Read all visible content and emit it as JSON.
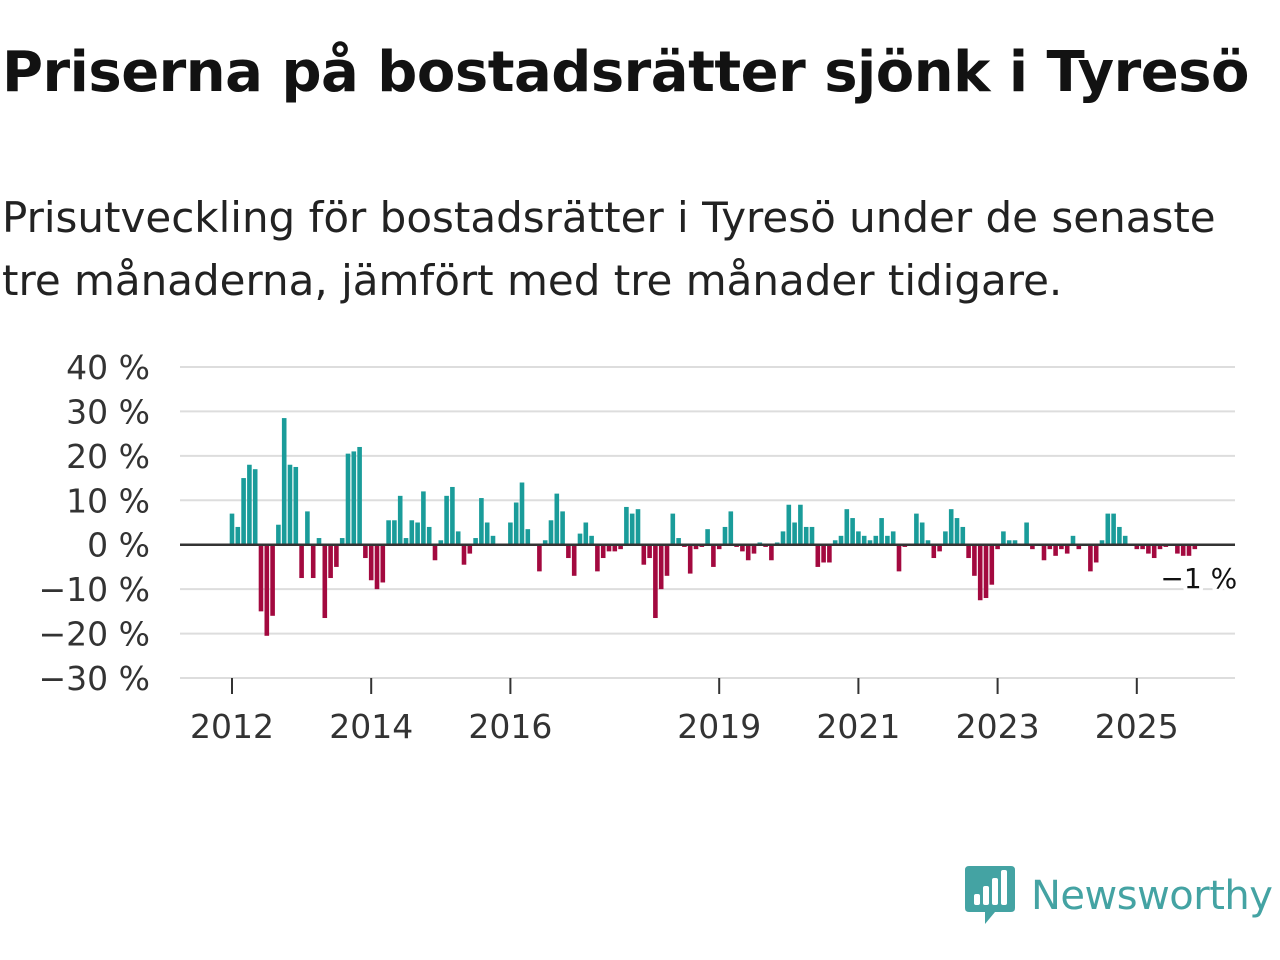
{
  "title": "Priserna på bostadsrätter sjönk i Tyresö",
  "subtitle": "Prisutveckling för bostadsrätter i Tyresö under de senaste tre månaderna, jämfört med tre månader tidigare.",
  "brand": {
    "name": "Newsworthy",
    "color": "#44a3a3"
  },
  "colors": {
    "positive": "#1a9c9a",
    "negative": "#a3093f",
    "grid": "#dddddd",
    "zero": "#333333"
  },
  "chart_data": {
    "type": "bar",
    "title": "Priserna på bostadsrätter sjönk i Tyresö",
    "ylabel": "",
    "xlabel": "",
    "ylim": [
      -30,
      40
    ],
    "yticks": [
      40,
      30,
      20,
      10,
      0,
      -10,
      -20,
      -30
    ],
    "ytick_labels": [
      "40 %",
      "30 %",
      "20 %",
      "10 %",
      "0 %",
      "−10 %",
      "−20 %",
      "−30 %"
    ],
    "xticks": [
      {
        "label": "2012",
        "index": 0
      },
      {
        "label": "2014",
        "index": 24
      },
      {
        "label": "2016",
        "index": 48
      },
      {
        "label": "2019",
        "index": 84
      },
      {
        "label": "2021",
        "index": 108
      },
      {
        "label": "2023",
        "index": 132
      },
      {
        "label": "2025",
        "index": 156
      }
    ],
    "last_value_label": "−1 %",
    "series": [
      {
        "name": "Prisutveckling",
        "start": "2012-01",
        "values": [
          7,
          4,
          15,
          18,
          17,
          -15,
          -20.5,
          -16,
          4.5,
          28.5,
          18,
          17.5,
          -7.5,
          7.5,
          -7.5,
          1.5,
          -16.5,
          -7.5,
          -5,
          1.5,
          20.5,
          21,
          22,
          -3,
          -8,
          -10,
          -8.5,
          5.5,
          5.5,
          11,
          1.5,
          5.5,
          5,
          12,
          4,
          -3.5,
          1,
          11,
          13,
          3,
          -4.5,
          -2,
          1.5,
          10.5,
          5,
          2,
          0,
          0,
          5,
          9.5,
          14,
          3.5,
          0,
          -6,
          1,
          5.5,
          11.5,
          7.5,
          -3,
          -7,
          2.5,
          5,
          2,
          -6,
          -3,
          -1.5,
          -1.5,
          -1,
          8.5,
          7,
          8,
          -4.5,
          -3,
          -16.5,
          -10,
          -7,
          7,
          1.5,
          -0.5,
          -6.5,
          -1,
          -0.5,
          3.5,
          -5,
          -1,
          4,
          7.5,
          -0.5,
          -1.5,
          -3.5,
          -2,
          0.5,
          -0.5,
          -3.5,
          0.5,
          3,
          9,
          5,
          9,
          4,
          4,
          -5,
          -4,
          -4,
          1,
          2,
          8,
          6,
          3,
          2,
          1,
          2,
          6,
          2,
          3,
          -6,
          -0.5,
          0,
          7,
          5,
          1,
          -3,
          -1.5,
          3,
          8,
          6,
          4,
          -3,
          -7,
          -12.5,
          -12,
          -9,
          -1,
          3,
          1,
          1,
          0,
          5,
          -1,
          0,
          -3.5,
          -1,
          -2.5,
          -1,
          -2,
          2,
          -1,
          0,
          -6,
          -4,
          1,
          7,
          7,
          4,
          2,
          0,
          -1,
          -1,
          -2,
          -3,
          -1,
          -0.5,
          0,
          -2,
          -2.5,
          -2.5,
          -1
        ]
      }
    ]
  }
}
